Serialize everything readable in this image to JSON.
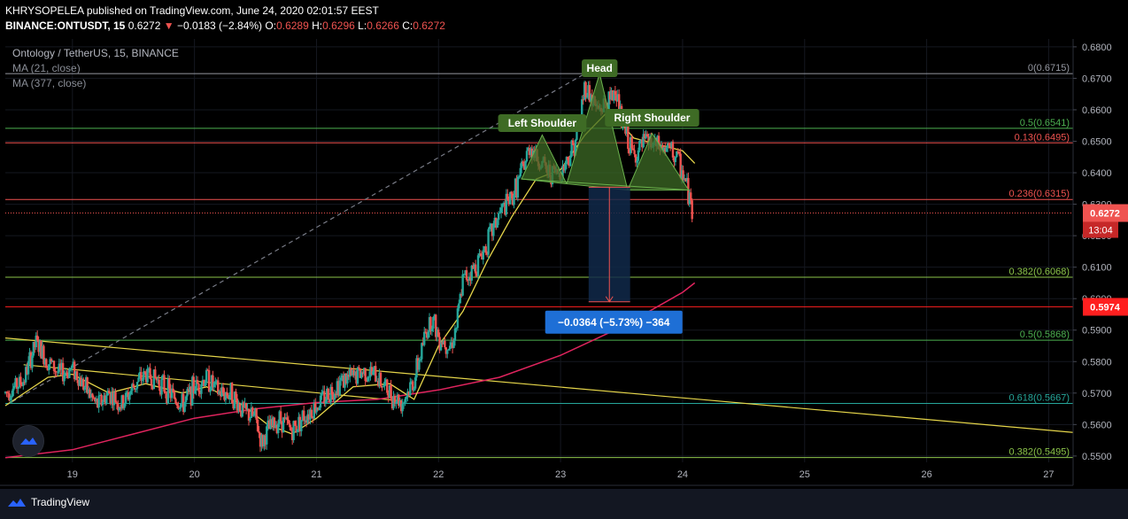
{
  "header": {
    "line1": "KHRYSOPELEA published on TradingView.com, June 24, 2020 02:01:57 EEST",
    "symbol": "BINANCE:ONTUSDT, 15",
    "last": "0.6272",
    "arrow": "▼",
    "change": "−0.0183 (−2.84%)",
    "o_label": "O:",
    "o": "0.6289",
    "h_label": "H:",
    "h": "0.6296",
    "l_label": "L:",
    "l": "0.6266",
    "c_label": "C:",
    "c": "0.6272"
  },
  "legend": {
    "title": "Ontology / TetherUS, 15, BINANCE",
    "ma1": "MA (21, close)",
    "ma2": "MA (377, close)"
  },
  "footer": {
    "brand": "TradingView"
  },
  "colors": {
    "up": "#26a69a",
    "down": "#ef5350",
    "ma_fast": "#e5d54a",
    "ma_slow": "#e0245e",
    "fib_green": "#4caf50",
    "fib_red": "#ef5350",
    "pattern": "#4a7a2a",
    "measure": "#1e6fd6"
  },
  "chart_data": {
    "type": "candlestick",
    "x_ticks": [
      "19",
      "20",
      "21",
      "22",
      "23",
      "24",
      "25",
      "26",
      "27"
    ],
    "y_ticks": [
      "0.6800",
      "0.6700",
      "0.6600",
      "0.6500",
      "0.6400",
      "0.6300",
      "0.6200",
      "0.6100",
      "0.6000",
      "0.5900",
      "0.5800",
      "0.5700",
      "0.5600",
      "0.5500"
    ],
    "ylim": [
      0.548,
      0.6825
    ],
    "xlim": [
      18.45,
      27.2
    ],
    "price_label": "0.6272",
    "countdown_label": "13:04",
    "level_label": "0.5974",
    "fib_levels": [
      {
        "label": "0(0.6715)",
        "value": 0.6715,
        "color": "#9598a1"
      },
      {
        "label": "0.5(0.6541)",
        "value": 0.6541,
        "color": "#4caf50"
      },
      {
        "label": "0.13(0.6495)",
        "value": 0.6495,
        "color": "#ef5350"
      },
      {
        "label": "0.236(0.6315)",
        "value": 0.6315,
        "color": "#ef5350"
      },
      {
        "label": "0.382(0.6068)",
        "value": 0.6068,
        "color": "#8bc34a"
      },
      {
        "label": "0.5(0.5868)",
        "value": 0.5868,
        "color": "#4caf50"
      },
      {
        "label": "0.618(0.5667)",
        "value": 0.5667,
        "color": "#26a69a"
      },
      {
        "label": "0.382(0.5495)",
        "value": 0.5495,
        "color": "#8bc34a"
      }
    ],
    "annotations": {
      "head": "Head",
      "left_shoulder": "Left Shoulder",
      "right_shoulder": "Right Shoulder",
      "measure": "−0.0364 (−5.73%) −364"
    },
    "price_path": [
      [
        18.45,
        0.57
      ],
      [
        18.6,
        0.574
      ],
      [
        18.7,
        0.586
      ],
      [
        18.8,
        0.58
      ],
      [
        18.9,
        0.576
      ],
      [
        19.0,
        0.578
      ],
      [
        19.1,
        0.572
      ],
      [
        19.2,
        0.566
      ],
      [
        19.3,
        0.57
      ],
      [
        19.4,
        0.566
      ],
      [
        19.5,
        0.572
      ],
      [
        19.6,
        0.576
      ],
      [
        19.7,
        0.574
      ],
      [
        19.8,
        0.57
      ],
      [
        19.9,
        0.566
      ],
      [
        20.0,
        0.572
      ],
      [
        20.1,
        0.575
      ],
      [
        20.2,
        0.57
      ],
      [
        20.3,
        0.57
      ],
      [
        20.4,
        0.564
      ],
      [
        20.5,
        0.562
      ],
      [
        20.55,
        0.554
      ],
      [
        20.6,
        0.558
      ],
      [
        20.7,
        0.562
      ],
      [
        20.8,
        0.558
      ],
      [
        20.9,
        0.563
      ],
      [
        21.0,
        0.566
      ],
      [
        21.1,
        0.57
      ],
      [
        21.2,
        0.574
      ],
      [
        21.3,
        0.575
      ],
      [
        21.4,
        0.577
      ],
      [
        21.5,
        0.575
      ],
      [
        21.6,
        0.57
      ],
      [
        21.7,
        0.567
      ],
      [
        21.8,
        0.574
      ],
      [
        21.85,
        0.582
      ],
      [
        21.9,
        0.59
      ],
      [
        21.95,
        0.594
      ],
      [
        22.0,
        0.588
      ],
      [
        22.1,
        0.585
      ],
      [
        22.15,
        0.592
      ],
      [
        22.2,
        0.606
      ],
      [
        22.3,
        0.61
      ],
      [
        22.4,
        0.618
      ],
      [
        22.5,
        0.627
      ],
      [
        22.6,
        0.632
      ],
      [
        22.7,
        0.642
      ],
      [
        22.75,
        0.649
      ],
      [
        22.8,
        0.645
      ],
      [
        22.9,
        0.64
      ],
      [
        23.0,
        0.64
      ],
      [
        23.1,
        0.648
      ],
      [
        23.15,
        0.655
      ],
      [
        23.2,
        0.668
      ],
      [
        23.25,
        0.664
      ],
      [
        23.3,
        0.66
      ],
      [
        23.4,
        0.662
      ],
      [
        23.45,
        0.667
      ],
      [
        23.5,
        0.656
      ],
      [
        23.6,
        0.645
      ],
      [
        23.7,
        0.65
      ],
      [
        23.8,
        0.648
      ],
      [
        23.9,
        0.647
      ],
      [
        23.95,
        0.645
      ],
      [
        24.0,
        0.64
      ],
      [
        24.05,
        0.633
      ],
      [
        24.08,
        0.6272
      ]
    ],
    "ma_fast": [
      [
        18.45,
        0.566
      ],
      [
        18.8,
        0.575
      ],
      [
        19.0,
        0.576
      ],
      [
        19.3,
        0.57
      ],
      [
        19.6,
        0.573
      ],
      [
        19.9,
        0.57
      ],
      [
        20.1,
        0.572
      ],
      [
        20.4,
        0.566
      ],
      [
        20.6,
        0.56
      ],
      [
        20.8,
        0.557
      ],
      [
        21.0,
        0.562
      ],
      [
        21.3,
        0.572
      ],
      [
        21.6,
        0.573
      ],
      [
        21.8,
        0.568
      ],
      [
        22.0,
        0.585
      ],
      [
        22.2,
        0.596
      ],
      [
        22.4,
        0.612
      ],
      [
        22.6,
        0.626
      ],
      [
        22.8,
        0.638
      ],
      [
        23.0,
        0.641
      ],
      [
        23.2,
        0.652
      ],
      [
        23.4,
        0.66
      ],
      [
        23.6,
        0.651
      ],
      [
        23.8,
        0.649
      ],
      [
        24.0,
        0.647
      ],
      [
        24.1,
        0.643
      ]
    ],
    "ma_slow": [
      [
        18.45,
        0.5495
      ],
      [
        19.0,
        0.552
      ],
      [
        19.5,
        0.557
      ],
      [
        20.0,
        0.562
      ],
      [
        20.5,
        0.565
      ],
      [
        21.0,
        0.567
      ],
      [
        21.5,
        0.568
      ],
      [
        22.0,
        0.571
      ],
      [
        22.5,
        0.575
      ],
      [
        23.0,
        0.582
      ],
      [
        23.5,
        0.591
      ],
      [
        24.0,
        0.602
      ],
      [
        24.1,
        0.605
      ]
    ],
    "trendlines": [
      {
        "from": [
          18.45,
          0.5875
        ],
        "to": [
          27.2,
          0.5575
        ],
        "color": "#e5d54a"
      },
      {
        "from": [
          18.6,
          0.579
        ],
        "to": [
          21.7,
          0.5675
        ],
        "color": "#e5d54a"
      },
      {
        "from": [
          18.45,
          0.566
        ],
        "to": [
          23.2,
          0.6715
        ],
        "color": "#787b86",
        "dashed": true
      }
    ]
  }
}
